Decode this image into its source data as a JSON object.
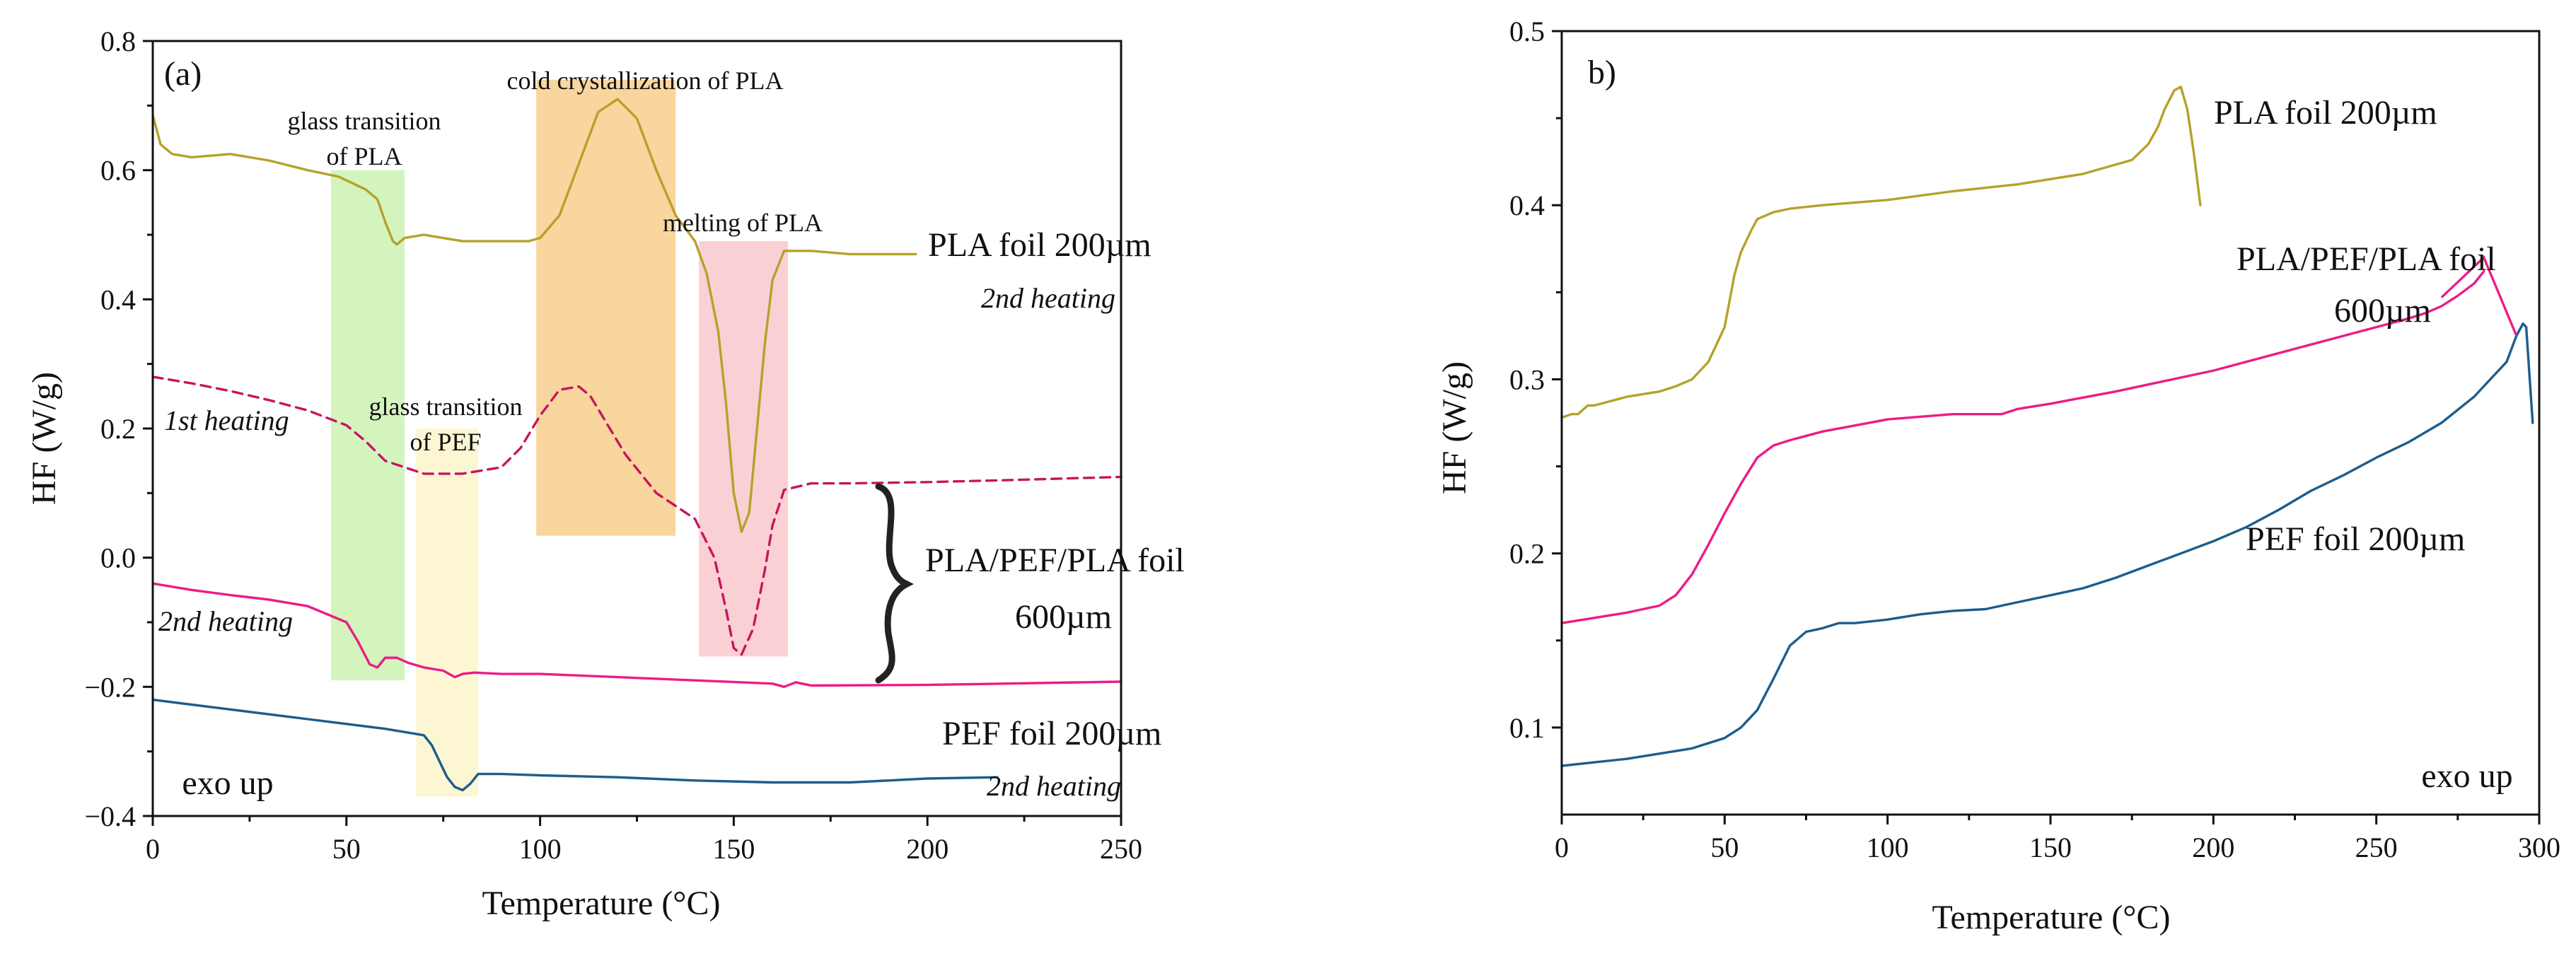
{
  "chart_data": [
    {
      "id": "a",
      "type": "line",
      "panel_label": "(a)",
      "xlabel": "Temperature (°C)",
      "ylabel": "HF (W/g)",
      "xlim": [
        0,
        250
      ],
      "ylim": [
        -0.4,
        0.8
      ],
      "xticks": [
        0,
        50,
        100,
        150,
        200,
        250
      ],
      "xtick_labels": [
        "0",
        "50",
        "100",
        "150",
        "200",
        "250"
      ],
      "yticks": [
        -0.4,
        -0.2,
        0.0,
        0.2,
        0.4,
        0.6,
        0.8
      ],
      "ytick_labels": [
        "−0.4",
        "−0.2",
        "0.0",
        "0.2",
        "0.4",
        "0.6",
        "0.8"
      ],
      "shaded_regions": [
        {
          "name": "glass-transition-pla",
          "x": [
            46,
            65
          ],
          "y": [
            -0.19,
            0.6
          ],
          "color": "#c6f0a8"
        },
        {
          "name": "glass-transition-pef",
          "x": [
            68,
            84
          ],
          "y": [
            -0.37,
            0.2
          ],
          "color": "#fbf3c4"
        },
        {
          "name": "cold-crystallization-pla",
          "x": [
            99,
            135
          ],
          "y": [
            0.034,
            0.74
          ],
          "color": "#f6c87e"
        },
        {
          "name": "melting-pla",
          "x": [
            141,
            164
          ],
          "y": [
            -0.153,
            0.49
          ],
          "color": "#f9c0c6"
        }
      ],
      "annotations": [
        {
          "name": "glass-transition-pla-text",
          "lines": [
            "glass transition",
            "of PLA"
          ],
          "x": 55,
          "y": [
            0.71,
            0.645
          ]
        },
        {
          "name": "cold-crystallization-text",
          "lines": [
            "cold crystallization of PLA"
          ],
          "x": 129,
          "y": [
            0.75
          ]
        },
        {
          "name": "melting-text",
          "lines": [
            "melting of PLA"
          ],
          "x": 155,
          "y": [
            0.515
          ]
        },
        {
          "name": "glass-transition-pef-text",
          "lines": [
            "glass transition",
            "of  PEF"
          ],
          "x": 79,
          "y": [
            0.22,
            0.155
          ]
        },
        {
          "name": "exo-up-text",
          "lines": [
            "exo up"
          ],
          "x": 19,
          "y": [
            -0.36
          ]
        }
      ],
      "series": [
        {
          "name": "PLA foil 200µm 2nd heating",
          "color": "#b5a22a",
          "dash": false,
          "x": [
            0,
            2,
            5,
            10,
            20,
            30,
            40,
            48,
            55,
            58,
            60,
            62,
            63,
            65,
            70,
            80,
            90,
            97,
            100,
            105,
            110,
            115,
            120,
            125,
            130,
            135,
            140,
            143,
            146,
            148,
            150,
            152,
            154,
            156,
            158,
            160,
            163,
            170,
            180,
            190,
            197
          ],
          "values": [
            0.685,
            0.64,
            0.625,
            0.62,
            0.625,
            0.615,
            0.6,
            0.59,
            0.57,
            0.555,
            0.52,
            0.49,
            0.485,
            0.495,
            0.5,
            0.49,
            0.49,
            0.49,
            0.495,
            0.53,
            0.61,
            0.69,
            0.71,
            0.68,
            0.6,
            0.53,
            0.49,
            0.44,
            0.35,
            0.24,
            0.1,
            0.04,
            0.07,
            0.2,
            0.33,
            0.43,
            0.475,
            0.475,
            0.47,
            0.47,
            0.47
          ]
        },
        {
          "name": "PLA/PEF/PLA foil 600µm 1st heating",
          "color": "#c8155f",
          "dash": true,
          "x": [
            0,
            10,
            20,
            30,
            40,
            50,
            55,
            60,
            65,
            70,
            80,
            90,
            95,
            100,
            105,
            110,
            113,
            118,
            122,
            130,
            140,
            145,
            148,
            150,
            152,
            155,
            158,
            160,
            163,
            170,
            180,
            200,
            220,
            250
          ],
          "values": [
            0.28,
            0.27,
            0.258,
            0.244,
            0.228,
            0.205,
            0.18,
            0.15,
            0.14,
            0.13,
            0.13,
            0.14,
            0.17,
            0.22,
            0.26,
            0.265,
            0.25,
            0.2,
            0.16,
            0.1,
            0.06,
            0.0,
            -0.08,
            -0.14,
            -0.15,
            -0.11,
            -0.02,
            0.05,
            0.105,
            0.115,
            0.115,
            0.117,
            0.12,
            0.125
          ]
        },
        {
          "name": "PLA/PEF/PLA foil 600µm 2nd heating",
          "color": "#ec1c86",
          "dash": false,
          "x": [
            0,
            10,
            20,
            30,
            40,
            50,
            53,
            56,
            58,
            60,
            63,
            66,
            70,
            75,
            78,
            80,
            83,
            90,
            100,
            120,
            140,
            160,
            163,
            166,
            170,
            200,
            250
          ],
          "values": [
            -0.04,
            -0.05,
            -0.058,
            -0.065,
            -0.075,
            -0.1,
            -0.13,
            -0.165,
            -0.17,
            -0.155,
            -0.155,
            -0.163,
            -0.17,
            -0.175,
            -0.185,
            -0.18,
            -0.178,
            -0.18,
            -0.18,
            -0.185,
            -0.19,
            -0.195,
            -0.2,
            -0.193,
            -0.198,
            -0.197,
            -0.192
          ]
        },
        {
          "name": "PEF foil 200µm 2nd heating",
          "color": "#1d5d8c",
          "dash": false,
          "x": [
            0,
            20,
            40,
            60,
            70,
            72,
            74,
            76,
            78,
            80,
            82,
            84,
            86,
            90,
            100,
            120,
            140,
            160,
            180,
            200,
            218
          ],
          "values": [
            -0.22,
            -0.235,
            -0.25,
            -0.265,
            -0.275,
            -0.29,
            -0.315,
            -0.34,
            -0.355,
            -0.36,
            -0.35,
            -0.335,
            -0.335,
            -0.335,
            -0.337,
            -0.34,
            -0.345,
            -0.348,
            -0.348,
            -0.342,
            -0.34
          ]
        }
      ],
      "legend_text": {
        "pla_foil": "PLA foil 200µm",
        "pla_2nd": "2nd heating",
        "first_heating": "1st heating",
        "second_heating_left": "2nd heating",
        "multilayer_line1": "PLA/PEF/PLA foil",
        "multilayer_line2": "600µm",
        "pef_foil": "PEF foil 200µm",
        "pef_2nd": "2nd heating"
      }
    },
    {
      "id": "b",
      "type": "line",
      "panel_label": "b)",
      "xlabel": "Temperature (°C)",
      "ylabel": "HF (W/g)",
      "xlim": [
        0,
        300
      ],
      "ylim": [
        0.05,
        0.5
      ],
      "xticks": [
        0,
        50,
        100,
        150,
        200,
        250,
        300
      ],
      "xtick_labels": [
        "0",
        "50",
        "100",
        "150",
        "200",
        "250",
        "300"
      ],
      "yticks": [
        0.1,
        0.2,
        0.3,
        0.4,
        0.5
      ],
      "ytick_labels": [
        "0.1",
        "0.2",
        "0.3",
        "0.4",
        "0.5"
      ],
      "annotations": [
        {
          "name": "exo-up-text",
          "lines": [
            "exo up"
          ],
          "x": 283,
          "y": [
            0.07
          ]
        }
      ],
      "series": [
        {
          "name": "PLA foil 200µm",
          "color": "#b5a22a",
          "x": [
            0,
            3,
            5,
            8,
            10,
            20,
            30,
            35,
            40,
            45,
            50,
            53,
            55,
            58,
            60,
            65,
            70,
            80,
            100,
            120,
            140,
            160,
            175,
            180,
            183,
            185,
            188,
            190,
            192,
            194,
            196
          ],
          "values": [
            0.278,
            0.28,
            0.28,
            0.285,
            0.285,
            0.29,
            0.293,
            0.296,
            0.3,
            0.31,
            0.33,
            0.36,
            0.373,
            0.385,
            0.392,
            0.396,
            0.398,
            0.4,
            0.403,
            0.408,
            0.412,
            0.418,
            0.426,
            0.435,
            0.445,
            0.455,
            0.466,
            0.468,
            0.455,
            0.43,
            0.4
          ]
        },
        {
          "name": "PLA/PEF/PLA foil 600µm",
          "color": "#ec1c86",
          "x": [
            0,
            10,
            20,
            30,
            35,
            40,
            45,
            50,
            55,
            60,
            65,
            70,
            80,
            100,
            120,
            130,
            135,
            140,
            150,
            170,
            200,
            230,
            250,
            260,
            265,
            270,
            275,
            280,
            283
          ],
          "values": [
            0.16,
            0.163,
            0.166,
            0.17,
            0.176,
            0.188,
            0.205,
            0.223,
            0.24,
            0.255,
            0.262,
            0.265,
            0.27,
            0.277,
            0.28,
            0.28,
            0.28,
            0.283,
            0.286,
            0.293,
            0.305,
            0.32,
            0.33,
            0.335,
            0.338,
            0.342,
            0.348,
            0.355,
            0.362
          ]
        },
        {
          "name": "PEF foil 200µm",
          "color": "#1d5d8c",
          "x": [
            0,
            10,
            20,
            30,
            40,
            50,
            55,
            60,
            65,
            70,
            75,
            80,
            85,
            90,
            100,
            110,
            120,
            130,
            140,
            150,
            160,
            170,
            180,
            190,
            200,
            210,
            220,
            230,
            240,
            250,
            260,
            270,
            280,
            285,
            290,
            293,
            295,
            296,
            298
          ],
          "values": [
            0.078,
            0.08,
            0.082,
            0.085,
            0.088,
            0.094,
            0.1,
            0.11,
            0.128,
            0.147,
            0.155,
            0.157,
            0.16,
            0.16,
            0.162,
            0.165,
            0.167,
            0.168,
            0.172,
            0.176,
            0.18,
            0.186,
            0.193,
            0.2,
            0.207,
            0.215,
            0.225,
            0.236,
            0.245,
            0.255,
            0.264,
            0.275,
            0.29,
            0.3,
            0.31,
            0.325,
            0.332,
            0.33,
            0.275
          ]
        }
      ],
      "connector": {
        "name": "pink-tail-connector",
        "x": [
          270,
          283,
          293
        ],
        "values": [
          0.347,
          0.37,
          0.325
        ],
        "color": "#ec1c86"
      },
      "legend_text": {
        "pla_foil": "PLA foil 200µm",
        "multilayer_line1": "PLA/PEF/PLA foil",
        "multilayer_line2": "600µm",
        "pef_foil": "PEF foil 200µm"
      }
    }
  ]
}
